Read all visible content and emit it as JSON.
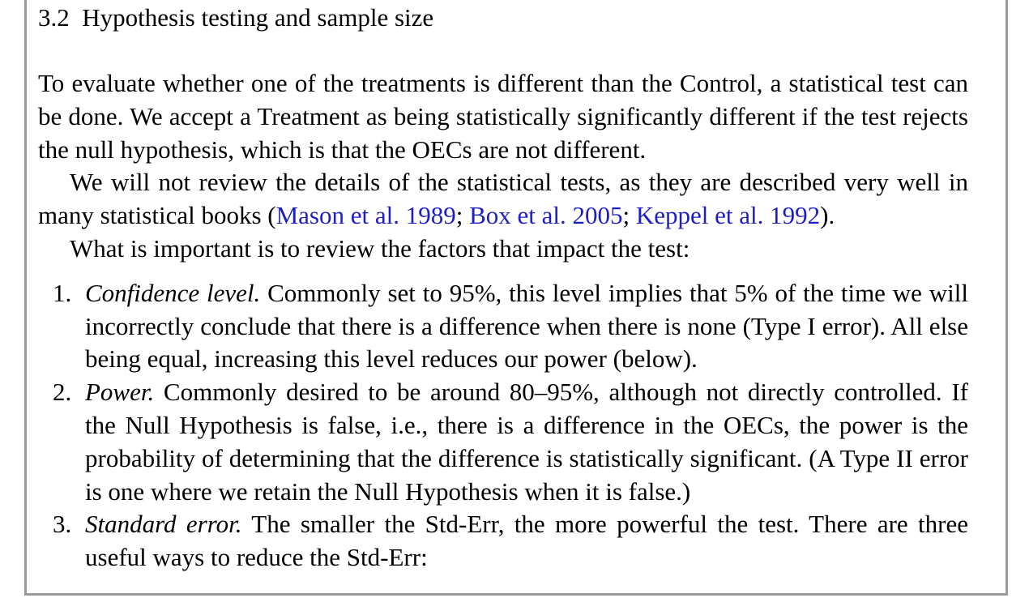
{
  "section": {
    "number": "3.2",
    "title": "Hypothesis testing and sample size"
  },
  "paragraph1": "To evaluate whether one of the treatments is different than the Control, a statistical test can be done. We accept a Treatment as being statistically significantly different if the test rejects the null hypothesis, which is that the OECs are not different.",
  "paragraph2": {
    "text_before": "We will not review the details of the statistical tests, as they are described very well in many statistical books (",
    "citations": [
      "Mason et al. 1989",
      "Box et al. 2005",
      "Keppel et al. 1992"
    ],
    "separator": "; ",
    "text_after": ")."
  },
  "paragraph3": "What is important is to review the factors that impact the test:",
  "list": [
    {
      "number": "1.",
      "term": "Confidence level.",
      "text": " Commonly set to 95%, this level implies that 5% of the time we will incorrectly conclude that there is a difference when there is none (Type I error). All else being equal, increasing this level reduces our power (below)."
    },
    {
      "number": "2.",
      "term": "Power.",
      "text": " Commonly desired to be around 80–95%, although not directly controlled. If the Null Hypothesis is false, i.e., there is a difference in the OECs, the power is the probability of determining that the difference is statistically significant. (A Type II error is one where we retain the Null Hypothesis when it is false.)"
    },
    {
      "number": "3.",
      "term": "Standard error.",
      "text": " The smaller the Std-Err, the more powerful the test. There are three useful ways to reduce the Std-Err:"
    }
  ],
  "colors": {
    "link": "#1d1dc7",
    "frame": "#9a9a9a",
    "text": "#000000"
  }
}
